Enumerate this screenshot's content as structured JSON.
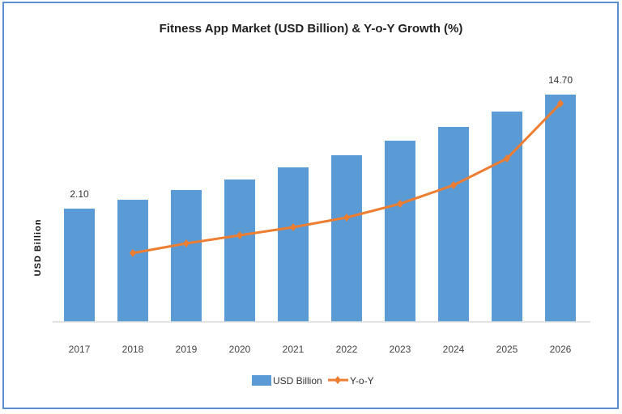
{
  "chart_data": {
    "type": "bar",
    "title": "Fitness App Market (USD Billion) & Y-o-Y Growth (%)",
    "xlabel": "",
    "ylabel": "USD Billion",
    "categories": [
      "2017",
      "2018",
      "2019",
      "2020",
      "2021",
      "2022",
      "2023",
      "2024",
      "2025",
      "2026"
    ],
    "series": [
      {
        "name": "USD Billion",
        "type": "bar",
        "color": "#5b9bd5",
        "values": [
          2.1,
          3.08,
          4.16,
          5.32,
          6.66,
          8.0,
          9.61,
          11.13,
          12.83,
          14.7
        ],
        "data_labels": {
          "2017": "2.10",
          "2026": "14.70"
        }
      },
      {
        "name": "Y-o-Y",
        "type": "line",
        "color": "#ed7d31",
        "axis": "secondary",
        "values": [
          null,
          8.5,
          9.7,
          10.7,
          11.7,
          12.9,
          14.6,
          16.9,
          20.2,
          27.0
        ]
      }
    ],
    "grid": false,
    "legend": "bottom",
    "frame_color": "#5b8fd0"
  }
}
